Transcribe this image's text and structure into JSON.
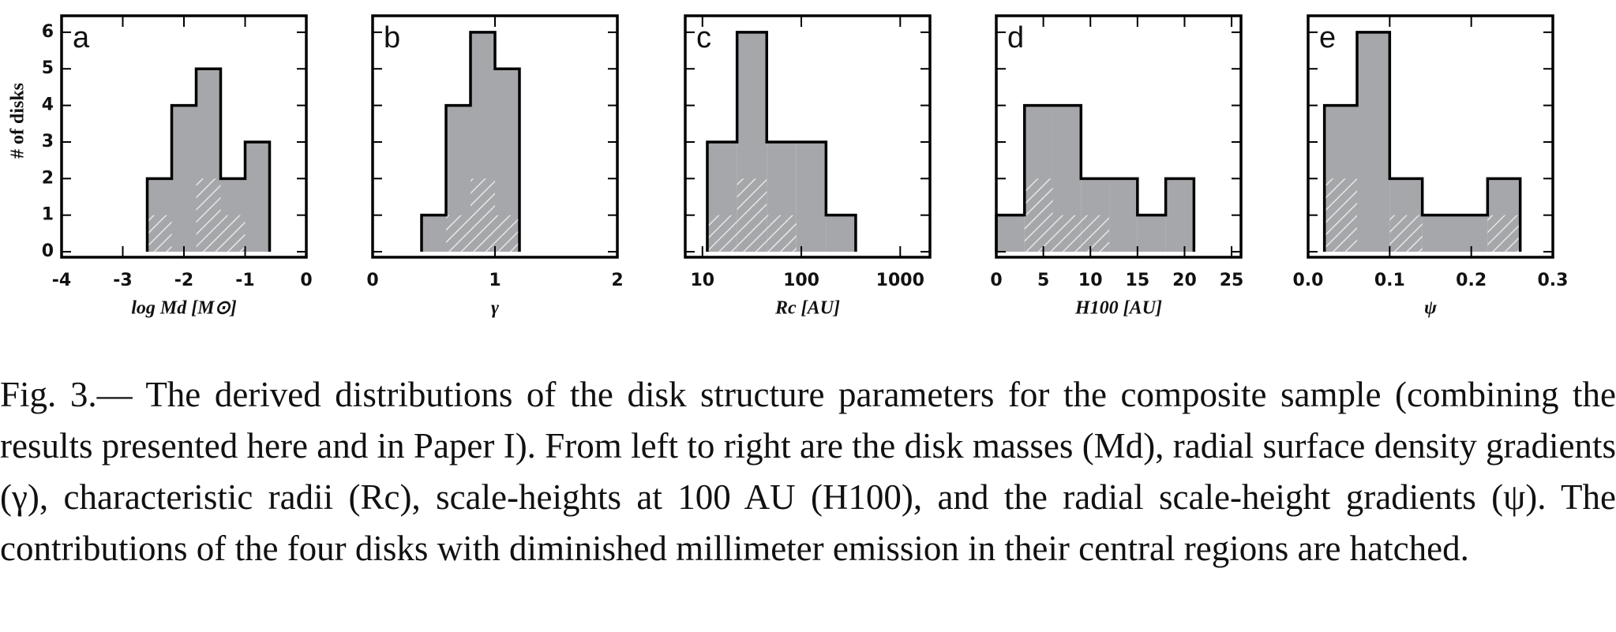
{
  "chart_data": [
    {
      "type": "histogram",
      "label": "a",
      "xlabel": "log Md [M⊙]",
      "ylabel": "# of disks",
      "bins": [
        -2.6,
        -2.2,
        -1.8,
        -1.4,
        -1.0,
        -0.6
      ],
      "values": [
        2,
        4,
        5,
        2,
        3
      ],
      "hatched_values": [
        1,
        0,
        2,
        1,
        0
      ],
      "xlim": [
        -4,
        0
      ],
      "xticks": [
        -4,
        -3,
        -2,
        -1,
        0
      ],
      "ylim": [
        -0.15,
        6.45
      ],
      "yticks": [
        0,
        1,
        2,
        3,
        4,
        5,
        6
      ],
      "color": "#a6a7aa",
      "log_x": false
    },
    {
      "type": "histogram",
      "label": "b",
      "xlabel": "γ",
      "bins": [
        0.4,
        0.6,
        0.8,
        1.0,
        1.2
      ],
      "values": [
        1,
        4,
        6,
        5
      ],
      "hatched_values": [
        0,
        1,
        2,
        1
      ],
      "xlim": [
        0,
        2
      ],
      "xticks": [
        0,
        1,
        2
      ],
      "ylim": [
        -0.15,
        6.45
      ],
      "color": "#a6a7aa",
      "log_x": false
    },
    {
      "type": "histogram",
      "label": "c",
      "xlabel": "Rc [AU]",
      "bins": [
        11.2,
        22.4,
        44.7,
        89.1,
        177.8,
        354.8
      ],
      "values": [
        3,
        6,
        3,
        3,
        1
      ],
      "hatched_values": [
        1,
        2,
        1,
        0,
        0
      ],
      "xlim": [
        6.7,
        2000
      ],
      "xticks": [
        10,
        100,
        1000
      ],
      "ylim": [
        -0.15,
        6.45
      ],
      "color": "#a6a7aa",
      "log_x": true
    },
    {
      "type": "histogram",
      "label": "d",
      "xlabel": "H100 [AU]",
      "bins": [
        0,
        3,
        6,
        9,
        12,
        15,
        18,
        21
      ],
      "values": [
        1,
        4,
        4,
        2,
        2,
        1,
        2
      ],
      "hatched_values": [
        0,
        2,
        1,
        1,
        0,
        0,
        0
      ],
      "xlim": [
        0,
        26
      ],
      "xticks": [
        0,
        5,
        10,
        15,
        20,
        25
      ],
      "ylim": [
        -0.15,
        6.45
      ],
      "color": "#a6a7aa",
      "log_x": false
    },
    {
      "type": "histogram",
      "label": "e",
      "xlabel": "ψ",
      "bins": [
        0.02,
        0.06,
        0.1,
        0.14,
        0.18,
        0.22,
        0.26
      ],
      "values": [
        4,
        6,
        2,
        1,
        1,
        2
      ],
      "hatched_values": [
        2,
        0,
        1,
        0,
        0,
        1
      ],
      "xlim": [
        0,
        0.3
      ],
      "xticks": [
        {
          "value": 0,
          "label": "0.0"
        },
        0.1,
        0.2,
        0.3
      ],
      "ylim": [
        -0.15,
        6.45
      ],
      "color": "#a6a7aa",
      "log_x": false
    }
  ],
  "caption": "Fig. 3.— The derived distributions of the disk structure parameters for the composite sample (combining the results presented here and in Paper I). From left to right are the disk masses (Md), radial surface density gradients (γ), characteristic radii (Rc), scale-heights at 100 AU (H100), and the radial scale-height gradients (ψ). The contributions of the four disks with diminished millimeter emission in their central regions are hatched."
}
